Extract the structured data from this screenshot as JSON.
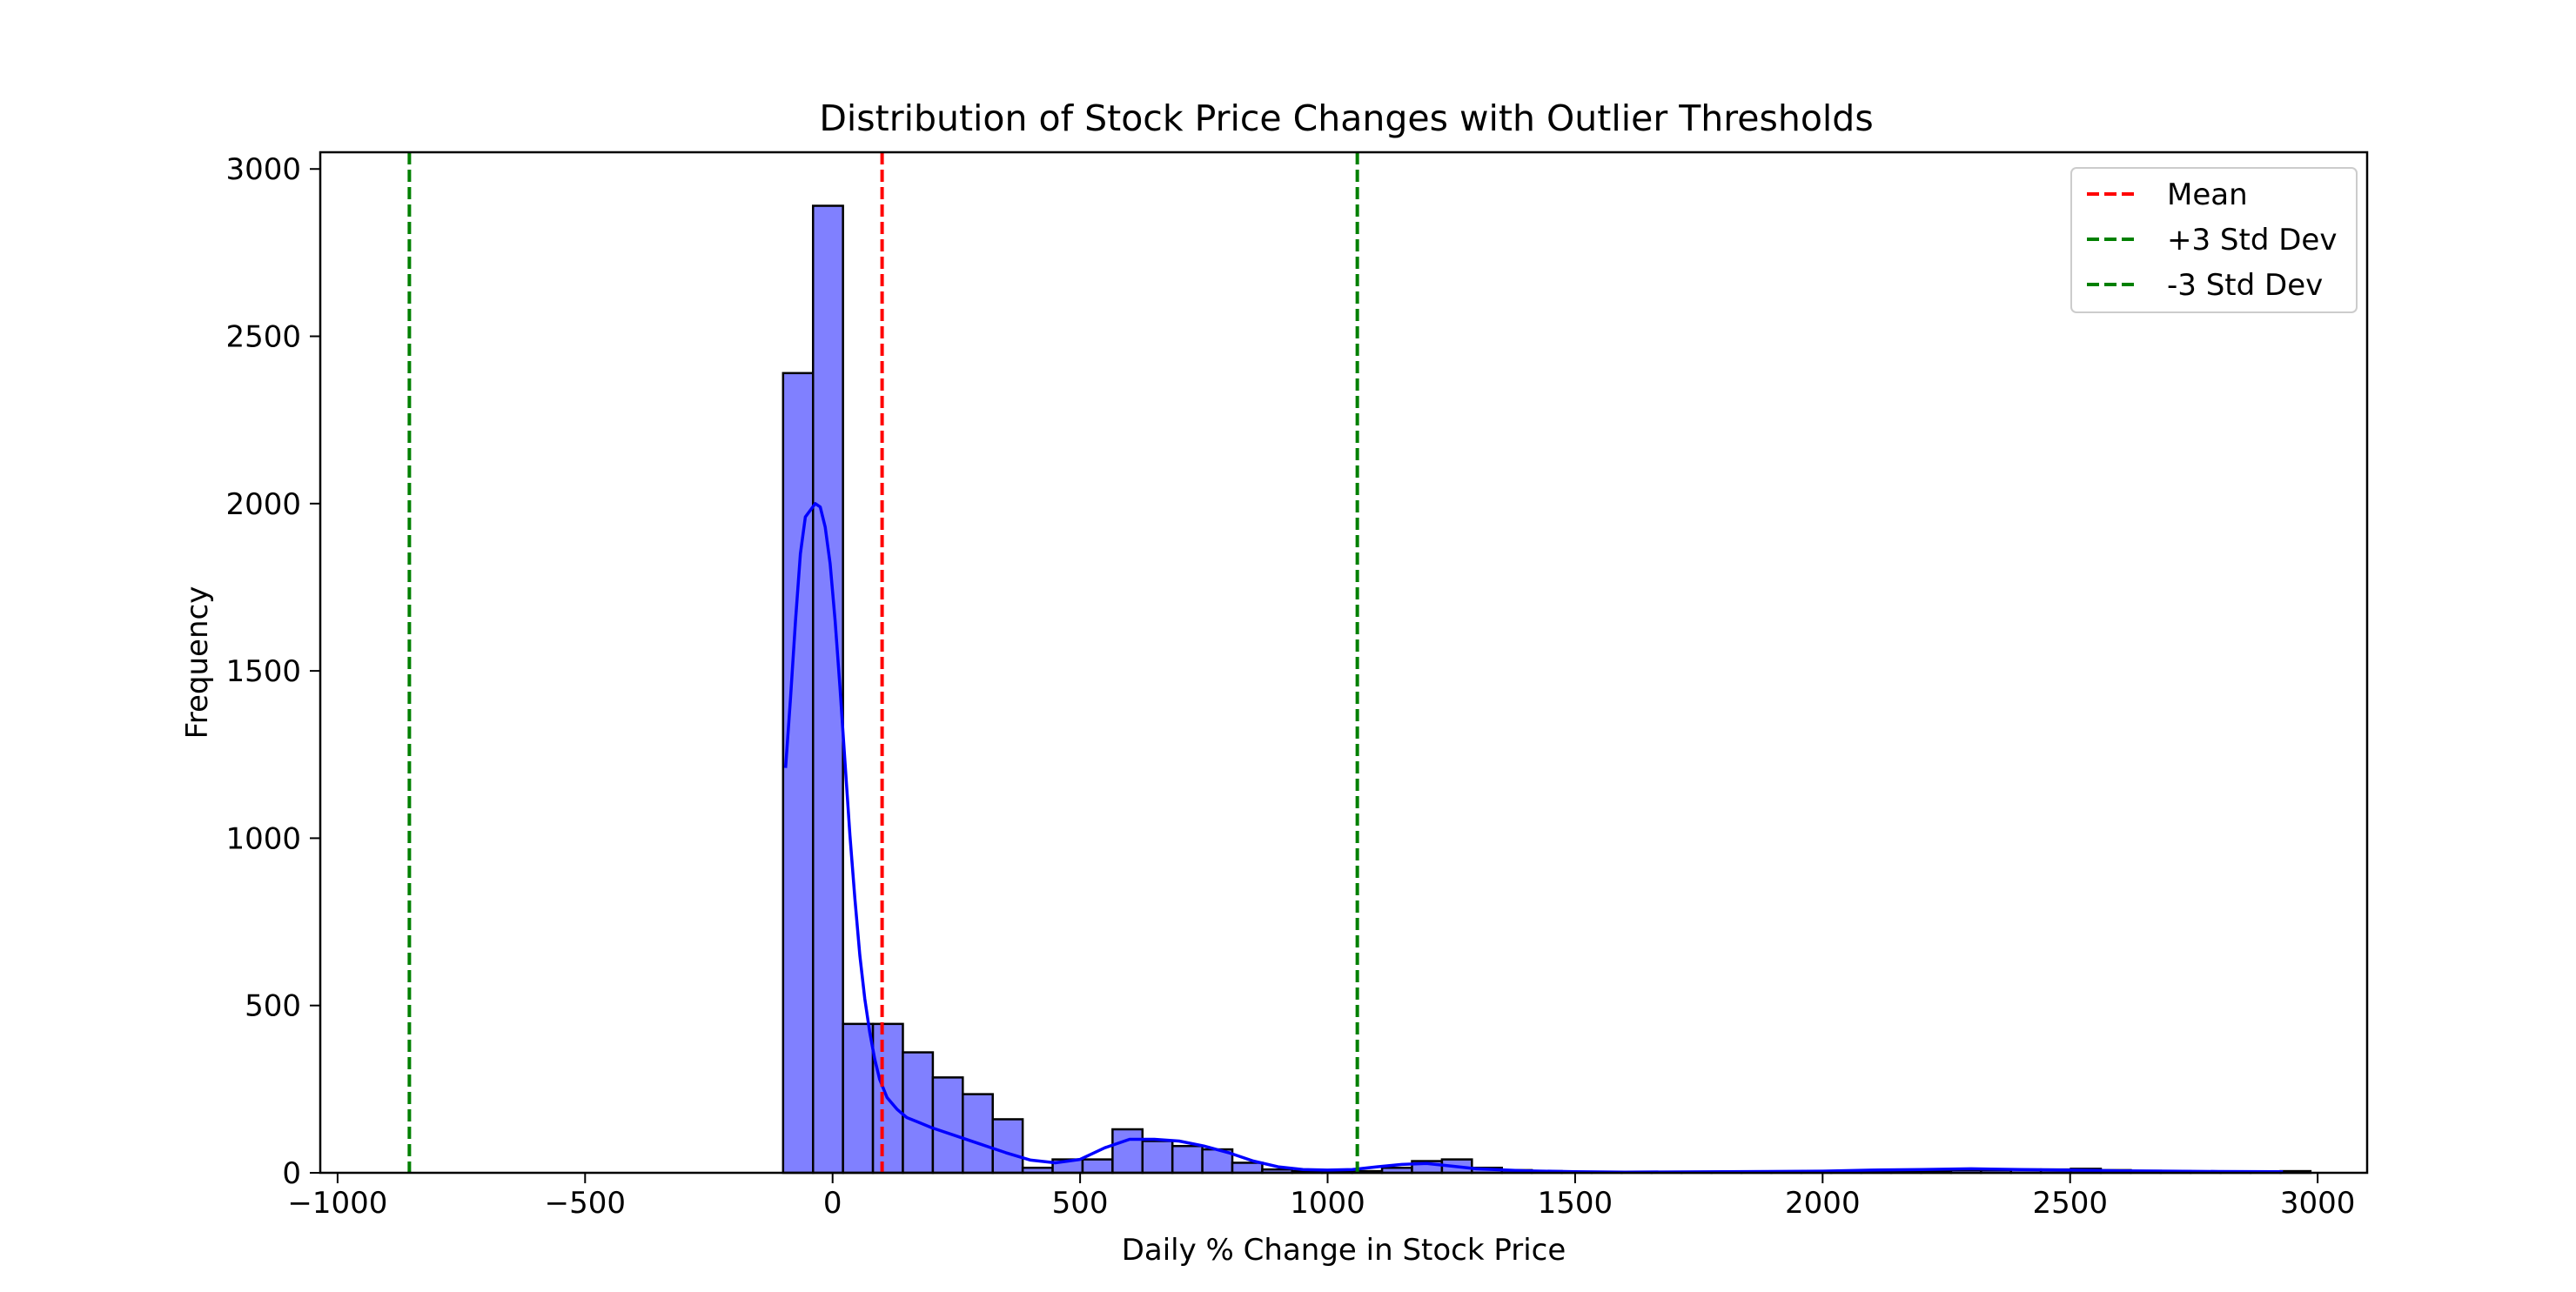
{
  "chart_data": {
    "type": "bar",
    "subtype": "histogram-with-kde",
    "title": "Distribution of Stock Price Changes with Outlier Thresholds",
    "xlabel": "Daily % Change in Stock Price",
    "ylabel": "Frequency",
    "xlim": [
      -1035,
      3100
    ],
    "ylim": [
      0,
      3050
    ],
    "x_ticks": [
      -1000,
      -500,
      0,
      500,
      1000,
      1500,
      2000,
      2500,
      3000
    ],
    "x_tick_labels": [
      "−1000",
      "−500",
      "0",
      "500",
      "1000",
      "1500",
      "2000",
      "2500",
      "3000"
    ],
    "y_ticks": [
      0,
      500,
      1000,
      1500,
      2000,
      2500,
      3000
    ],
    "y_tick_labels": [
      "0",
      "500",
      "1000",
      "1500",
      "2000",
      "2500",
      "3000"
    ],
    "bin_start": -100,
    "bin_width": 60.5,
    "bin_counts": [
      2390,
      2890,
      445,
      445,
      360,
      285,
      235,
      160,
      15,
      40,
      40,
      130,
      95,
      80,
      70,
      30,
      10,
      5,
      5,
      5,
      15,
      35,
      40,
      15,
      8,
      5,
      3,
      3,
      3,
      2,
      2,
      2,
      2,
      2,
      3,
      3,
      3,
      5,
      5,
      8,
      8,
      10,
      10,
      12,
      8,
      6,
      5,
      3,
      4,
      3,
      5
    ],
    "kde": {
      "x": [
        -95,
        -85,
        -75,
        -65,
        -55,
        -45,
        -35,
        -25,
        -15,
        -5,
        5,
        15,
        25,
        35,
        45,
        55,
        65,
        75,
        85,
        95,
        110,
        130,
        150,
        175,
        200,
        250,
        300,
        350,
        400,
        450,
        500,
        550,
        600,
        650,
        700,
        750,
        800,
        850,
        900,
        950,
        1000,
        1050,
        1100,
        1150,
        1200,
        1250,
        1300,
        1400,
        1500,
        1600,
        1800,
        2000,
        2100,
        2200,
        2300,
        2400,
        2500,
        2600,
        2700,
        2800,
        2930
      ],
      "y": [
        1210,
        1420,
        1650,
        1850,
        1960,
        1980,
        2000,
        1990,
        1930,
        1820,
        1650,
        1450,
        1230,
        1010,
        820,
        650,
        520,
        420,
        340,
        280,
        225,
        190,
        165,
        150,
        135,
        110,
        85,
        60,
        38,
        30,
        40,
        75,
        100,
        100,
        95,
        80,
        60,
        35,
        18,
        10,
        8,
        10,
        18,
        25,
        28,
        20,
        12,
        6,
        3,
        2,
        3,
        5,
        8,
        10,
        12,
        10,
        8,
        6,
        5,
        4,
        3
      ]
    },
    "reference_lines": [
      {
        "name": "Mean",
        "x": 100,
        "color": "#ff0000",
        "style": "dashed"
      },
      {
        "name": "+3 Std Dev",
        "x": 1060,
        "color": "#008000",
        "style": "dashed"
      },
      {
        "name": "-3 Std Dev",
        "x": -855,
        "color": "#008000",
        "style": "dashed"
      }
    ],
    "bar_color": "#8080ff",
    "bar_edge_color": "#000000",
    "kde_color": "#0000ff",
    "legend_position": "top-right",
    "grid": false
  }
}
